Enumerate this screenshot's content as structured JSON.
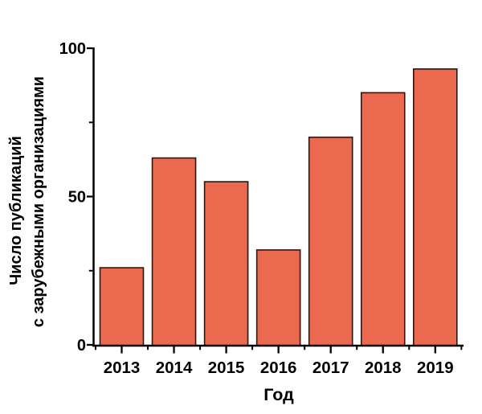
{
  "chart_data": {
    "type": "bar",
    "title": "",
    "categories": [
      "2013",
      "2014",
      "2015",
      "2016",
      "2017",
      "2018",
      "2019"
    ],
    "values": [
      26,
      63,
      55,
      32,
      70,
      85,
      93
    ],
    "xlabel": "Год",
    "ylabel_line1": "Число публикаций",
    "ylabel_line2": "с зарубежными организациями",
    "ylim": [
      0,
      100
    ],
    "yticks_major": [
      0,
      50,
      100
    ],
    "yticks_minor": [
      25,
      75
    ],
    "grid": false,
    "legend": null,
    "colors": {
      "bar_fill": "#EB694E",
      "bar_stroke": "#2B1710",
      "axis": "#000000",
      "text": "#000000",
      "background": "#FFFFFF"
    }
  }
}
